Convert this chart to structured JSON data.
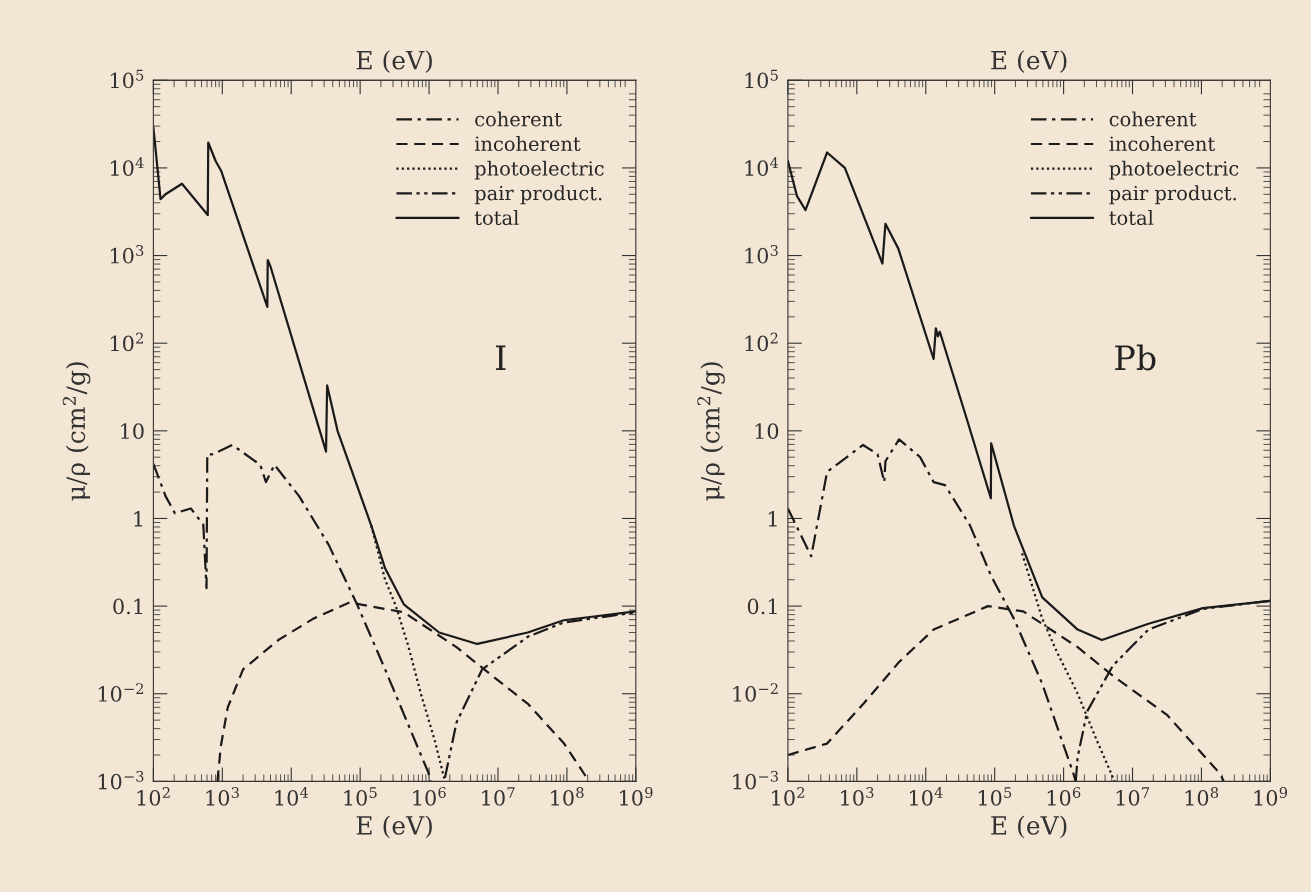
{
  "chart_data": [
    {
      "type": "line",
      "xlabel": "E (eV)",
      "x2label": "E (eV)",
      "ylabel": "μ/ρ (cm$^{2}$/g)",
      "annotations": [
        "I"
      ],
      "log": "xy",
      "grid": false,
      "legend": "top right",
      "xlim": [
        100,
        1000000000
      ],
      "ylim": [
        0.001,
        100000
      ],
      "xticks": [
        {
          "value": 100,
          "label": "10$^{2}$"
        },
        {
          "value": 1000,
          "label": "10$^{3}$"
        },
        {
          "value": 10000,
          "label": "10$^{4}$"
        },
        {
          "value": 100000,
          "label": "10$^{5}$"
        },
        {
          "value": 1000000,
          "label": "10$^{6}$"
        },
        {
          "value": 10000000,
          "label": "10$^{7}$"
        },
        {
          "value": 100000000,
          "label": "10$^{8}$"
        },
        {
          "value": 1000000000,
          "label": "10$^{9}$"
        }
      ],
      "yticks": [
        {
          "value": 0.001,
          "label": "10$^{−3}$"
        },
        {
          "value": 0.01,
          "label": "10$^{−2}$"
        },
        0.1,
        1,
        10,
        {
          "value": 100,
          "label": "10$^{2}$"
        },
        {
          "value": 1000,
          "label": "10$^{3}$"
        },
        {
          "value": 10000,
          "label": "10$^{4}$"
        },
        {
          "value": 100000,
          "label": "10$^{5}$"
        }
      ],
      "series": [
        {
          "name": "coherent",
          "color": "#1a1a1a",
          "line_style": "dashdot",
          "x": [
            100,
            150,
            205,
            350,
            530,
            590,
            605,
            720,
            1400,
            3550,
            4300,
            5700,
            13000,
            35000,
            90000,
            230000,
            980000,
            1050000
          ],
          "values": [
            4.2,
            1.8,
            1.15,
            1.3,
            0.85,
            0.16,
            5.4,
            5.4,
            6.9,
            4.1,
            2.6,
            4.1,
            1.8,
            0.5,
            0.105,
            0.019,
            0.00125,
            0.001
          ]
        },
        {
          "name": "incoherent",
          "color": "#1a1a1a",
          "line_style": "dashed",
          "x": [
            850,
            950,
            1200,
            2000,
            6500,
            21000,
            70000,
            430000,
            2500000,
            8300000,
            27500000,
            91000000,
            210000000
          ],
          "values": [
            0.001,
            0.0025,
            0.007,
            0.019,
            0.041,
            0.072,
            0.11,
            0.085,
            0.034,
            0.016,
            0.0076,
            0.0027,
            0.001
          ]
        },
        {
          "name": "photoelectric",
          "color": "#1a1a1a",
          "line_style": "dotted",
          "x": [
            145000,
            230000,
            330000,
            500000,
            760000,
            1200000,
            1700000
          ],
          "values": [
            0.83,
            0.2,
            0.1,
            0.035,
            0.01,
            0.003,
            0.001
          ]
        },
        {
          "name": "pair product.",
          "color": "#1a1a1a",
          "line_style": "dashdotdot",
          "x": [
            1700000,
            2500000,
            5900000,
            27500000,
            90000000,
            1000000000
          ],
          "values": [
            0.0011,
            0.0047,
            0.019,
            0.045,
            0.065,
            0.085
          ]
        },
        {
          "name": "total",
          "color": "#1a1a1a",
          "line_style": "solid",
          "x": [
            100,
            127,
            150,
            260,
            615,
            625,
            800,
            960,
            4500,
            4560,
            5000,
            32000,
            33200,
            47000,
            145000,
            230000,
            430000,
            1400000,
            5000000,
            27000000,
            90000000,
            1000000000
          ],
          "values": [
            29000,
            4400,
            5000,
            6600,
            2900,
            19500,
            12000,
            9300,
            260,
            890,
            750,
            5.8,
            33,
            10,
            0.83,
            0.27,
            0.105,
            0.05,
            0.037,
            0.05,
            0.069,
            0.087
          ]
        }
      ]
    },
    {
      "type": "line",
      "xlabel": "E (eV)",
      "x2label": "E (eV)",
      "ylabel": "μ/ρ (cm$^{2}$/g)",
      "annotations": [
        "Pb"
      ],
      "log": "xy",
      "grid": false,
      "legend": "top right",
      "xlim": [
        100,
        1000000000
      ],
      "ylim": [
        0.001,
        100000
      ],
      "xticks": [
        {
          "value": 100,
          "label": "10$^{2}$"
        },
        {
          "value": 1000,
          "label": "10$^{3}$"
        },
        {
          "value": 10000,
          "label": "10$^{4}$"
        },
        {
          "value": 100000,
          "label": "10$^{5}$"
        },
        {
          "value": 1000000,
          "label": "10$^{6}$"
        },
        {
          "value": 10000000,
          "label": "10$^{7}$"
        },
        {
          "value": 100000000,
          "label": "10$^{8}$"
        },
        {
          "value": 1000000000,
          "label": "10$^{9}$"
        }
      ],
      "yticks": [
        {
          "value": 0.001,
          "label": "10$^{−3}$"
        },
        {
          "value": 0.01,
          "label": "10$^{−2}$"
        },
        0.1,
        1,
        10,
        {
          "value": 100,
          "label": "10$^{2}$"
        },
        {
          "value": 1000,
          "label": "10$^{3}$"
        },
        {
          "value": 10000,
          "label": "10$^{4}$"
        },
        {
          "value": 100000,
          "label": "10$^{5}$"
        }
      ],
      "series": [
        {
          "name": "coherent",
          "color": "#1a1a1a",
          "line_style": "dashdot",
          "x": [
            100,
            218,
            370,
            1230,
            2000,
            2500,
            2600,
            4100,
            8300,
            13000,
            19000,
            44000,
            89000,
            190000,
            490000,
            1400000,
            1500000
          ],
          "values": [
            1.3,
            0.37,
            3.4,
            6.9,
            5.4,
            2.6,
            4.5,
            8,
            5,
            2.6,
            2.4,
            0.83,
            0.22,
            0.072,
            0.013,
            0.0012,
            0.001
          ]
        },
        {
          "name": "incoherent",
          "color": "#1a1a1a",
          "line_style": "dashed",
          "x": [
            100,
            370,
            1230,
            4100,
            13000,
            80000,
            260000,
            1600000,
            5200000,
            32000000,
            190000000,
            210000000
          ],
          "values": [
            0.002,
            0.0027,
            0.0076,
            0.023,
            0.054,
            0.1,
            0.087,
            0.034,
            0.016,
            0.0057,
            0.0012,
            0.001
          ]
        },
        {
          "name": "photoelectric",
          "color": "#1a1a1a",
          "line_style": "dotted",
          "x": [
            250000,
            490000,
            800000,
            1600000,
            3000000,
            5500000
          ],
          "values": [
            0.4,
            0.072,
            0.03,
            0.01,
            0.003,
            0.001
          ]
        },
        {
          "name": "pair product.",
          "color": "#1a1a1a",
          "line_style": "dashdotdot",
          "x": [
            1500000,
            1600000,
            2200000,
            5200000,
            17000000,
            105000000,
            1000000000
          ],
          "values": [
            0.001,
            0.0019,
            0.0063,
            0.021,
            0.054,
            0.093,
            0.115
          ]
        },
        {
          "name": "total",
          "color": "#1a1a1a",
          "line_style": "solid",
          "x": [
            100,
            135,
            180,
            370,
            670,
            2350,
            2600,
            4000,
            13000,
            14000,
            15000,
            16000,
            39000,
            88000,
            89000,
            190000,
            490000,
            1600000,
            3600000,
            17000000,
            105000000,
            1000000000
          ],
          "values": [
            12000,
            4800,
            3300,
            15000,
            10000,
            810,
            2300,
            1200,
            66,
            148,
            120,
            135,
            14,
            1.7,
            7.2,
            0.83,
            0.126,
            0.054,
            0.041,
            0.063,
            0.095,
            0.115
          ]
        }
      ]
    }
  ]
}
